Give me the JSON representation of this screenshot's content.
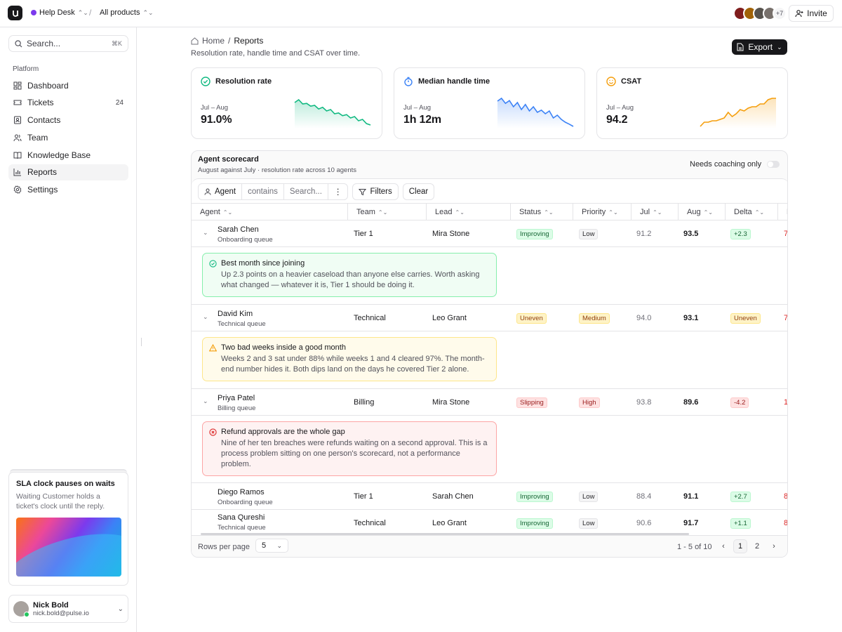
{
  "topbar": {
    "workspace": "Help Desk",
    "product": "All products",
    "more_avatars": "+7",
    "invite_label": "Invite"
  },
  "sidebar": {
    "search_placeholder": "Search...",
    "search_shortcut": "⌘K",
    "section": "Platform",
    "items": [
      {
        "label": "Dashboard",
        "icon": "dashboard-icon"
      },
      {
        "label": "Tickets",
        "icon": "ticket-icon",
        "count": "24"
      },
      {
        "label": "Contacts",
        "icon": "contacts-icon"
      },
      {
        "label": "Team",
        "icon": "team-icon"
      },
      {
        "label": "Knowledge Base",
        "icon": "book-icon"
      },
      {
        "label": "Reports",
        "icon": "chart-icon",
        "active": true
      },
      {
        "label": "Settings",
        "icon": "gear-icon"
      }
    ],
    "promo": {
      "title": "SLA clock pauses on waits",
      "text": "Waiting Customer holds a ticket's clock until the reply."
    },
    "user": {
      "name": "Nick Bold",
      "email": "nick.bold@pulse.io"
    }
  },
  "header": {
    "home": "Home",
    "current": "Reports",
    "subtitle": "Resolution rate, handle time and CSAT over time.",
    "export_label": "Export"
  },
  "kpis": [
    {
      "title": "Resolution rate",
      "range": "Jul – Aug",
      "value": "91.0%",
      "color": "#10b981",
      "trend": [
        0.85,
        0.95,
        0.8,
        0.82,
        0.72,
        0.75,
        0.62,
        0.68,
        0.55,
        0.6,
        0.45,
        0.48,
        0.38,
        0.42,
        0.3,
        0.35,
        0.2,
        0.25,
        0.1,
        0.05
      ]
    },
    {
      "title": "Median handle time",
      "range": "Jul – Aug",
      "value": "1h 12m",
      "color": "#3b82f6",
      "trend": [
        0.9,
        1.0,
        0.82,
        0.92,
        0.7,
        0.85,
        0.6,
        0.78,
        0.55,
        0.7,
        0.5,
        0.58,
        0.45,
        0.55,
        0.3,
        0.4,
        0.25,
        0.15,
        0.08,
        0.0
      ]
    },
    {
      "title": "CSAT",
      "range": "Jul – Aug",
      "value": "94.2",
      "color": "#f59e0b",
      "trend": [
        0.0,
        0.15,
        0.15,
        0.2,
        0.2,
        0.25,
        0.3,
        0.5,
        0.35,
        0.45,
        0.6,
        0.55,
        0.65,
        0.7,
        0.7,
        0.8,
        0.8,
        0.95,
        1.0,
        1.0
      ]
    }
  ],
  "scorecard": {
    "title": "Agent scorecard",
    "subtitle": "August against July · resolution rate across 10 agents",
    "coaching_label": "Needs coaching only",
    "filter_field": "Agent",
    "filter_op": "contains",
    "filter_placeholder": "Search...",
    "filters_label": "Filters",
    "clear_label": "Clear",
    "columns": [
      "Agent",
      "Team",
      "Lead",
      "Status",
      "Priority",
      "Jul",
      "Aug",
      "Delta",
      "B"
    ],
    "rows": [
      {
        "name": "Sarah Chen",
        "queue": "Onboarding queue",
        "team": "Tier 1",
        "lead": "Mira Stone",
        "status": "Improving",
        "priority": "Low",
        "jul": "91.2",
        "aug": "93.5",
        "delta": "+2.3",
        "extra": "7"
      },
      {
        "name": "David Kim",
        "queue": "Technical queue",
        "team": "Technical",
        "lead": "Leo Grant",
        "status": "Uneven",
        "priority": "Medium",
        "jul": "94.0",
        "aug": "93.1",
        "delta": "Uneven",
        "extra": "7"
      },
      {
        "name": "Priya Patel",
        "queue": "Billing queue",
        "team": "Billing",
        "lead": "Mira Stone",
        "status": "Slipping",
        "priority": "High",
        "jul": "93.8",
        "aug": "89.6",
        "delta": "-4.2",
        "extra": "1"
      },
      {
        "name": "Diego Ramos",
        "queue": "Onboarding queue",
        "team": "Tier 1",
        "lead": "Sarah Chen",
        "status": "Improving",
        "priority": "Low",
        "jul": "88.4",
        "aug": "91.1",
        "delta": "+2.7",
        "extra": "8"
      },
      {
        "name": "Sana Qureshi",
        "queue": "Technical queue",
        "team": "Technical",
        "lead": "Leo Grant",
        "status": "Improving",
        "priority": "Low",
        "jul": "90.6",
        "aug": "91.7",
        "delta": "+1.1",
        "extra": "8"
      }
    ],
    "callouts": [
      {
        "title": "Best month since joining",
        "body": "Up 2.3 points on a heavier caseload than anyone else carries. Worth asking what changed — whatever it is, Tier 1 should be doing it."
      },
      {
        "title": "Two bad weeks inside a good month",
        "body": "Weeks 2 and 3 sat under 88% while weeks 1 and 4 cleared 97%. The month-end number hides it. Both dips land on the days he covered Tier 2 alone."
      },
      {
        "title": "Refund approvals are the whole gap",
        "body": "Nine of her ten breaches were refunds waiting on a second approval. This is a process problem sitting on one person's scorecard, not a performance problem."
      }
    ],
    "pager": {
      "rows_label": "Rows per page",
      "rows_value": "5",
      "info": "1 - 5 of 10",
      "pages": [
        "1",
        "2"
      ]
    }
  }
}
